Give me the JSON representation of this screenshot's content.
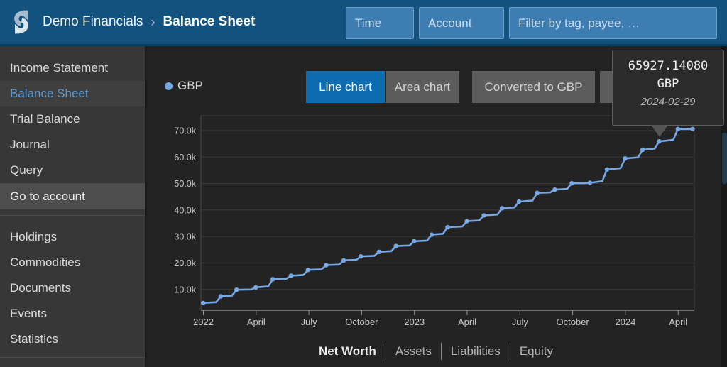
{
  "header": {
    "ledger_title": "Demo Financials",
    "separator": "›",
    "page_title": "Balance Sheet",
    "filters": {
      "time_placeholder": "Time",
      "account_placeholder": "Account",
      "filter_placeholder": "Filter by tag, payee, …"
    }
  },
  "sidebar": {
    "reports": [
      {
        "label": "Income Statement",
        "active": false
      },
      {
        "label": "Balance Sheet",
        "active": true
      },
      {
        "label": "Trial Balance",
        "active": false
      },
      {
        "label": "Journal",
        "active": false
      },
      {
        "label": "Query",
        "active": false
      }
    ],
    "actions": [
      {
        "label": "Go to account",
        "style": "action"
      }
    ],
    "details": [
      {
        "label": "Holdings",
        "active": false
      },
      {
        "label": "Commodities",
        "active": false
      },
      {
        "label": "Documents",
        "active": false
      },
      {
        "label": "Events",
        "active": false
      },
      {
        "label": "Statistics",
        "active": false
      }
    ]
  },
  "chart": {
    "legend": [
      {
        "label": "GBP",
        "color": "#78A8E4"
      }
    ],
    "buttons": {
      "line": "Line chart",
      "area": "Area chart",
      "conversion": "Converted to GBP"
    },
    "tooltip": {
      "value": "65927.14080",
      "currency": "GBP",
      "date": "2024-02-29"
    }
  },
  "chart_data": {
    "type": "line",
    "unit": "GBP",
    "grid": true,
    "legend_position": "top-left",
    "ylim": [
      2200,
      75600
    ],
    "y_ticks": [
      {
        "value": 10000,
        "label": "10.0k"
      },
      {
        "value": 20000,
        "label": "20.0k"
      },
      {
        "value": 30000,
        "label": "30.0k"
      },
      {
        "value": 40000,
        "label": "40.0k"
      },
      {
        "value": 50000,
        "label": "50.0k"
      },
      {
        "value": 60000,
        "label": "60.0k"
      },
      {
        "value": 70000,
        "label": "70.0k"
      }
    ],
    "x_ticks": [
      {
        "label": "2022",
        "at": "2022-01-01"
      },
      {
        "label": "April",
        "at": "2022-04-01"
      },
      {
        "label": "July",
        "at": "2022-07-01"
      },
      {
        "label": "October",
        "at": "2022-10-01"
      },
      {
        "label": "2023",
        "at": "2023-01-01"
      },
      {
        "label": "April",
        "at": "2023-04-01"
      },
      {
        "label": "July",
        "at": "2023-07-01"
      },
      {
        "label": "October",
        "at": "2023-10-01"
      },
      {
        "label": "2024",
        "at": "2024-01-01"
      },
      {
        "label": "April",
        "at": "2024-04-01"
      }
    ],
    "series": [
      {
        "name": "GBP",
        "color": "#78A8E4",
        "points": [
          {
            "date": "2021-12-31",
            "value": 4900
          },
          {
            "date": "2022-01-31",
            "value": 7400
          },
          {
            "date": "2022-02-28",
            "value": 9900
          },
          {
            "date": "2022-03-31",
            "value": 10800
          },
          {
            "date": "2022-04-30",
            "value": 13900
          },
          {
            "date": "2022-05-31",
            "value": 15200
          },
          {
            "date": "2022-06-30",
            "value": 17400
          },
          {
            "date": "2022-07-31",
            "value": 19200
          },
          {
            "date": "2022-08-31",
            "value": 21000
          },
          {
            "date": "2022-09-30",
            "value": 22500
          },
          {
            "date": "2022-10-31",
            "value": 24200
          },
          {
            "date": "2022-11-30",
            "value": 26400
          },
          {
            "date": "2022-12-31",
            "value": 28200
          },
          {
            "date": "2023-01-31",
            "value": 30700
          },
          {
            "date": "2023-02-28",
            "value": 33500
          },
          {
            "date": "2023-03-31",
            "value": 35800
          },
          {
            "date": "2023-04-30",
            "value": 38000
          },
          {
            "date": "2023-05-31",
            "value": 40700
          },
          {
            "date": "2023-06-30",
            "value": 43200
          },
          {
            "date": "2023-07-31",
            "value": 46500
          },
          {
            "date": "2023-08-31",
            "value": 47700
          },
          {
            "date": "2023-09-30",
            "value": 50100
          },
          {
            "date": "2023-10-31",
            "value": 50300
          },
          {
            "date": "2023-11-30",
            "value": 55300
          },
          {
            "date": "2023-12-31",
            "value": 59500
          },
          {
            "date": "2024-01-31",
            "value": 62800
          },
          {
            "date": "2024-02-29",
            "value": 65927.1408
          },
          {
            "date": "2024-03-31",
            "value": 70600
          },
          {
            "date": "2024-04-26",
            "value": 70600
          }
        ]
      }
    ],
    "highlighted_point": {
      "date": "2024-02-29",
      "value": 65927.1408
    }
  },
  "footer": {
    "links": [
      {
        "label": "Net Worth",
        "active": true
      },
      {
        "label": "Assets",
        "active": false
      },
      {
        "label": "Liabilities",
        "active": false
      },
      {
        "label": "Equity",
        "active": false
      }
    ]
  },
  "colors": {
    "header": "#13517E",
    "accent_active": "#0E6CB0",
    "line": "#78A8E4",
    "sidebar_active_text": "#5C9CD6"
  }
}
